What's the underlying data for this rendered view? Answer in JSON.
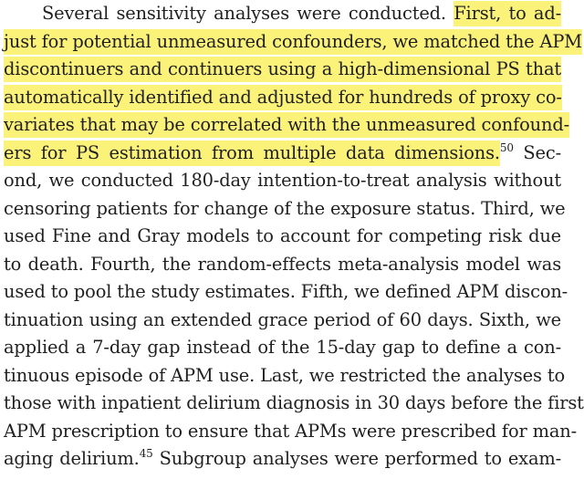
{
  "document": {
    "highlight_color": "#fbf27a",
    "text_color": "#1f1f1f",
    "lines": [
      {
        "pre": "Several sensitivity analyses were conducted. ",
        "hl": "First, to ad-"
      },
      {
        "hl": "just for potential unmeasured confounders, we matched the APM"
      },
      {
        "hl": "discontinuers and continuers using a high-dimensional PS that"
      },
      {
        "hl": "automatically identified and adjusted for hundreds of proxy co-"
      },
      {
        "hl": "variates that may be correlated with the unmeasured confound-"
      },
      {
        "hl": "ers for PS estimation from multiple data dimensions.",
        "sup": "50",
        "post": " Sec-"
      },
      {
        "text": "ond, we conducted 180-day intention-to-treat analysis without"
      },
      {
        "text": "censoring patients for change of the exposure status. Third, we"
      },
      {
        "text": "used Fine and Gray models to account for competing risk due"
      },
      {
        "text": "to death. Fourth, the random-effects meta-analysis model was"
      },
      {
        "text": "used to pool the study estimates. Fifth, we defined APM discon-"
      },
      {
        "text": "tinuation using an extended grace period of 60 days. Sixth, we"
      },
      {
        "text": "applied a 7-day gap instead of the 15-day gap to define a con-"
      },
      {
        "text": "tinuous episode of APM use. Last, we restricted the analyses to"
      },
      {
        "text": "those with inpatient delirium diagnosis in 30 days before the first"
      },
      {
        "text": "APM prescription to ensure that APMs were prescribed for man-"
      },
      {
        "pre": "aging delirium.",
        "sup": "45",
        "post": " Subgroup analyses were performed to exam-"
      }
    ]
  }
}
